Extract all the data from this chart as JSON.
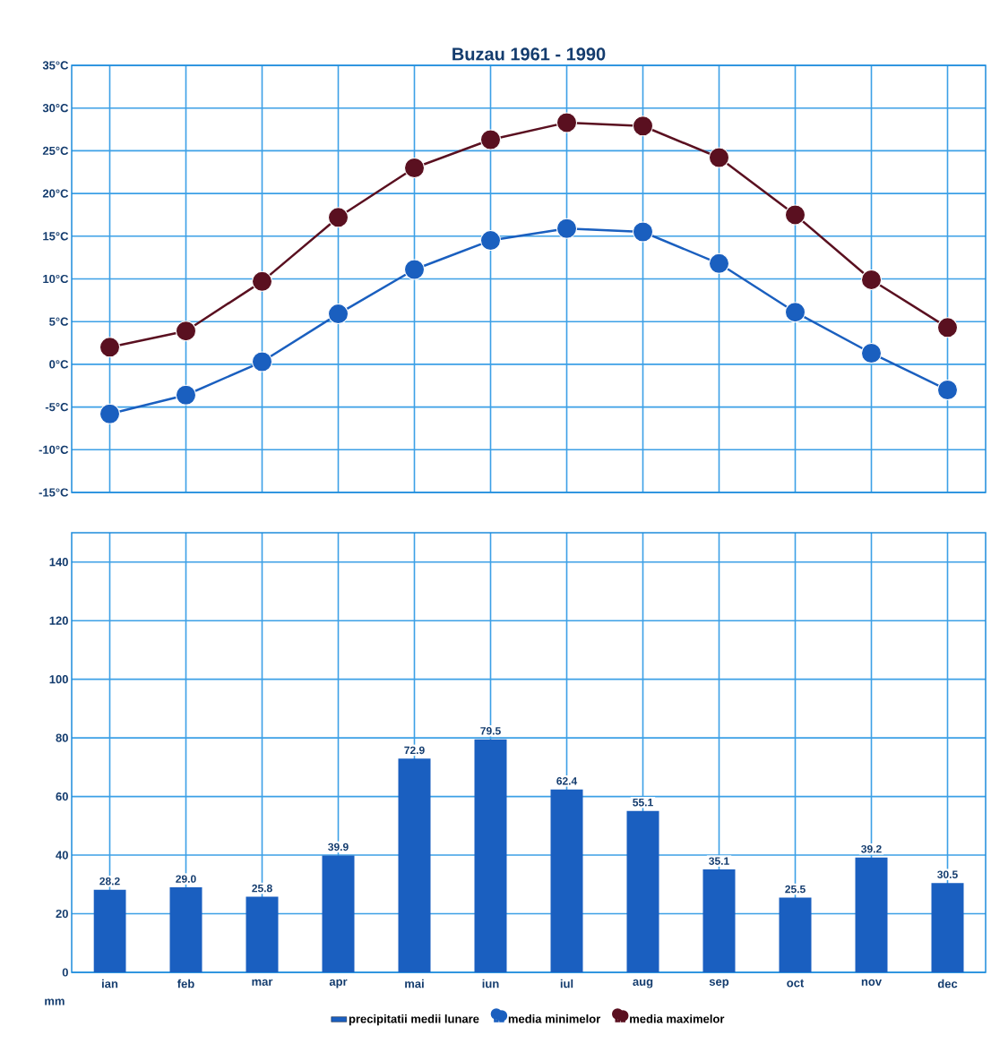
{
  "chart_data": [
    {
      "type": "line",
      "title": "Buzau 1961 - 1990",
      "categories": [
        null,
        null,
        null,
        null,
        null,
        null,
        null,
        null,
        null,
        null,
        null,
        null
      ],
      "tick_labels": "y",
      "grid": true,
      "marker": "circle",
      "legend": "bottom",
      "ylim": [
        -15,
        35
      ],
      "yticks": [
        {
          "value": -15,
          "label": "-15°C"
        },
        {
          "value": -10,
          "label": "-10°C"
        },
        {
          "value": -5,
          "label": "-5°C"
        },
        {
          "value": 0,
          "label": "0°C"
        },
        {
          "value": 5,
          "label": "5°C"
        },
        {
          "value": 10,
          "label": "10°C"
        },
        {
          "value": 15,
          "label": "15°C"
        },
        {
          "value": 20,
          "label": "20°C"
        },
        {
          "value": 25,
          "label": "25°C"
        },
        {
          "value": 30,
          "label": "30°C"
        },
        {
          "value": 35,
          "label": "35°C"
        }
      ],
      "series": [
        {
          "name": "media minimelor",
          "color": "#1a5fbf",
          "values": [
            -5.8,
            -3.6,
            0.3,
            5.9,
            11.1,
            14.5,
            15.9,
            15.5,
            11.8,
            6.1,
            1.3,
            -3.0
          ]
        },
        {
          "name": "media maximelor",
          "color": "#5a1020",
          "values": [
            2.0,
            3.9,
            9.7,
            17.2,
            23.0,
            26.3,
            28.3,
            27.9,
            24.2,
            17.5,
            9.9,
            4.3
          ]
        }
      ]
    },
    {
      "type": "bar",
      "categories": [
        "ian",
        "feb",
        "mar",
        "apr",
        "mai",
        "iun",
        "iul",
        "aug",
        "sep",
        "oct",
        "nov",
        "dec"
      ],
      "ylabel": "mm",
      "grid": true,
      "legend": "bottom",
      "ylim": [
        0,
        150
      ],
      "yticks": [
        0,
        20,
        40,
        60,
        80,
        100,
        120,
        140
      ],
      "series": [
        {
          "name": "precipitatii medii lunare",
          "color": "#1a5fc0",
          "values": [
            28.2,
            29.0,
            25.8,
            39.9,
            72.9,
            79.5,
            62.4,
            55.1,
            35.1,
            25.5,
            39.2,
            30.5
          ],
          "value_labels": [
            "28.2",
            "29.0",
            "25.8",
            "39.9",
            "72.9",
            "79.5",
            "62.4",
            "55.1",
            "35.1",
            "25.5",
            "39.2",
            "30.5"
          ]
        }
      ]
    }
  ]
}
